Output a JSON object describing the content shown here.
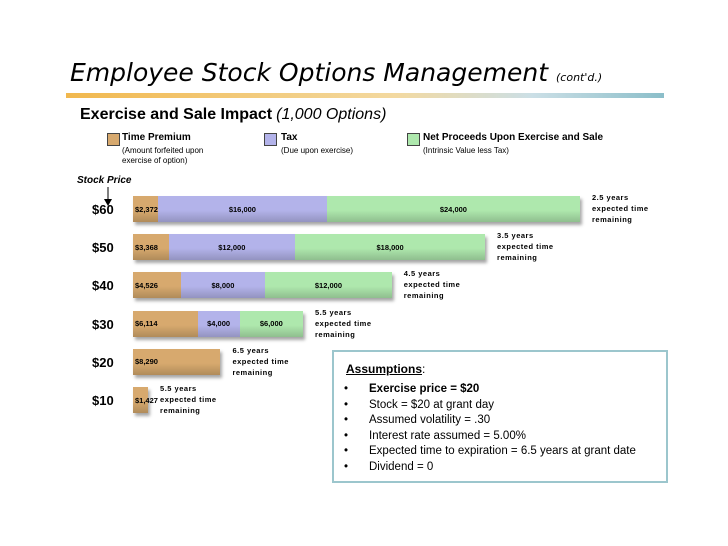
{
  "header": {
    "title": "Employee Stock Options Management",
    "title_suffix": "(cont'd.)"
  },
  "chart_data": {
    "type": "bar",
    "orientation": "horizontal",
    "stacked": true,
    "title": "Exercise and Sale Impact",
    "title_note": "(1,000 Options)",
    "axis_label": "Stock Price",
    "colors": {
      "time_premium": "#d7a96e",
      "tax": "#b3b3ea",
      "net": "#aee8ad"
    },
    "legend": [
      {
        "key": "time_premium",
        "label": "Time Premium",
        "note": "(Amount forfeited upon exercise of option)"
      },
      {
        "key": "tax",
        "label": "Tax",
        "note": "(Due upon exercise)"
      },
      {
        "key": "net",
        "label": "Net Proceeds Upon Exercise and Sale",
        "note": "(Intrinsic Value less Tax)"
      }
    ],
    "rows": [
      {
        "stock_price": "$60",
        "time_premium": 2372,
        "time_premium_label": "$2,372",
        "tax": 16000,
        "tax_label": "$16,000",
        "net": 24000,
        "net_label": "$24,000",
        "note": [
          "2.5 years",
          "expected time",
          "remaining"
        ]
      },
      {
        "stock_price": "$50",
        "time_premium": 3368,
        "time_premium_label": "$3,368",
        "tax": 12000,
        "tax_label": "$12,000",
        "net": 18000,
        "net_label": "$18,000",
        "note": [
          "3.5 years",
          "expected time",
          "remaining"
        ]
      },
      {
        "stock_price": "$40",
        "time_premium": 4526,
        "time_premium_label": "$4,526",
        "tax": 8000,
        "tax_label": "$8,000",
        "net": 12000,
        "net_label": "$12,000",
        "note": [
          "4.5 years",
          "expected time",
          "remaining"
        ]
      },
      {
        "stock_price": "$30",
        "time_premium": 6114,
        "time_premium_label": "$6,114",
        "tax": 4000,
        "tax_label": "$4,000",
        "net": 6000,
        "net_label": "$6,000",
        "note": [
          "5.5 years",
          "expected time",
          "remaining"
        ]
      },
      {
        "stock_price": "$20",
        "time_premium": 8290,
        "time_premium_label": "$8,290",
        "tax": 0,
        "tax_label": "",
        "net": 0,
        "net_label": "",
        "note": [
          "6.5 years",
          "expected time",
          "remaining"
        ]
      },
      {
        "stock_price": "$10",
        "time_premium": 1427,
        "time_premium_label": "$1,427",
        "tax": 0,
        "tax_label": "",
        "net": 0,
        "net_label": "",
        "note": [
          "5.5 years",
          "expected time",
          "remaining"
        ]
      }
    ]
  },
  "assumptions": {
    "heading": "Assumptions",
    "heading_suffix": ":",
    "items": [
      "Exercise price = $20",
      "Stock = $20 at grant day",
      "Assumed volatility = .30",
      "Interest rate assumed = 5.00%",
      "Expected time to expiration = 6.5 years at grant date",
      "Dividend = 0"
    ],
    "bullet": "•"
  }
}
